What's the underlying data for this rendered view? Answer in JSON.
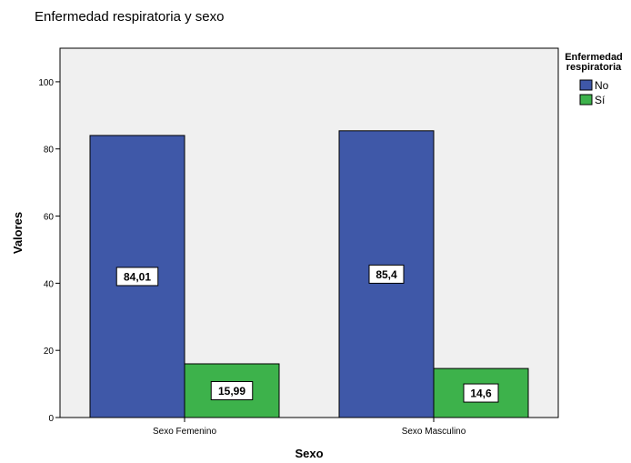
{
  "chart_data": {
    "type": "bar",
    "title": "Enfermedad respiratoria y sexo",
    "xlabel": "Sexo",
    "ylabel": "Valores",
    "categories": [
      "Sexo Femenino",
      "Sexo Masculino"
    ],
    "series": [
      {
        "name": "No",
        "values": [
          84.01,
          85.4
        ],
        "labels": [
          "84,01",
          "85,4"
        ],
        "color": "#3f58a8"
      },
      {
        "name": "Sí",
        "values": [
          15.99,
          14.6
        ],
        "labels": [
          "15,99",
          "14,6"
        ],
        "color": "#3db24b"
      }
    ],
    "ylim": [
      0,
      110
    ],
    "yticks": [
      0,
      20,
      40,
      60,
      80,
      100
    ],
    "yticklabels": [
      "0",
      "20",
      "40",
      "60",
      "80",
      "100"
    ],
    "legend": {
      "title_lines": [
        "Enfermedad",
        "respiratoria"
      ],
      "position": "top-right"
    },
    "grid": false,
    "plot_background": "#f0f0f0"
  }
}
